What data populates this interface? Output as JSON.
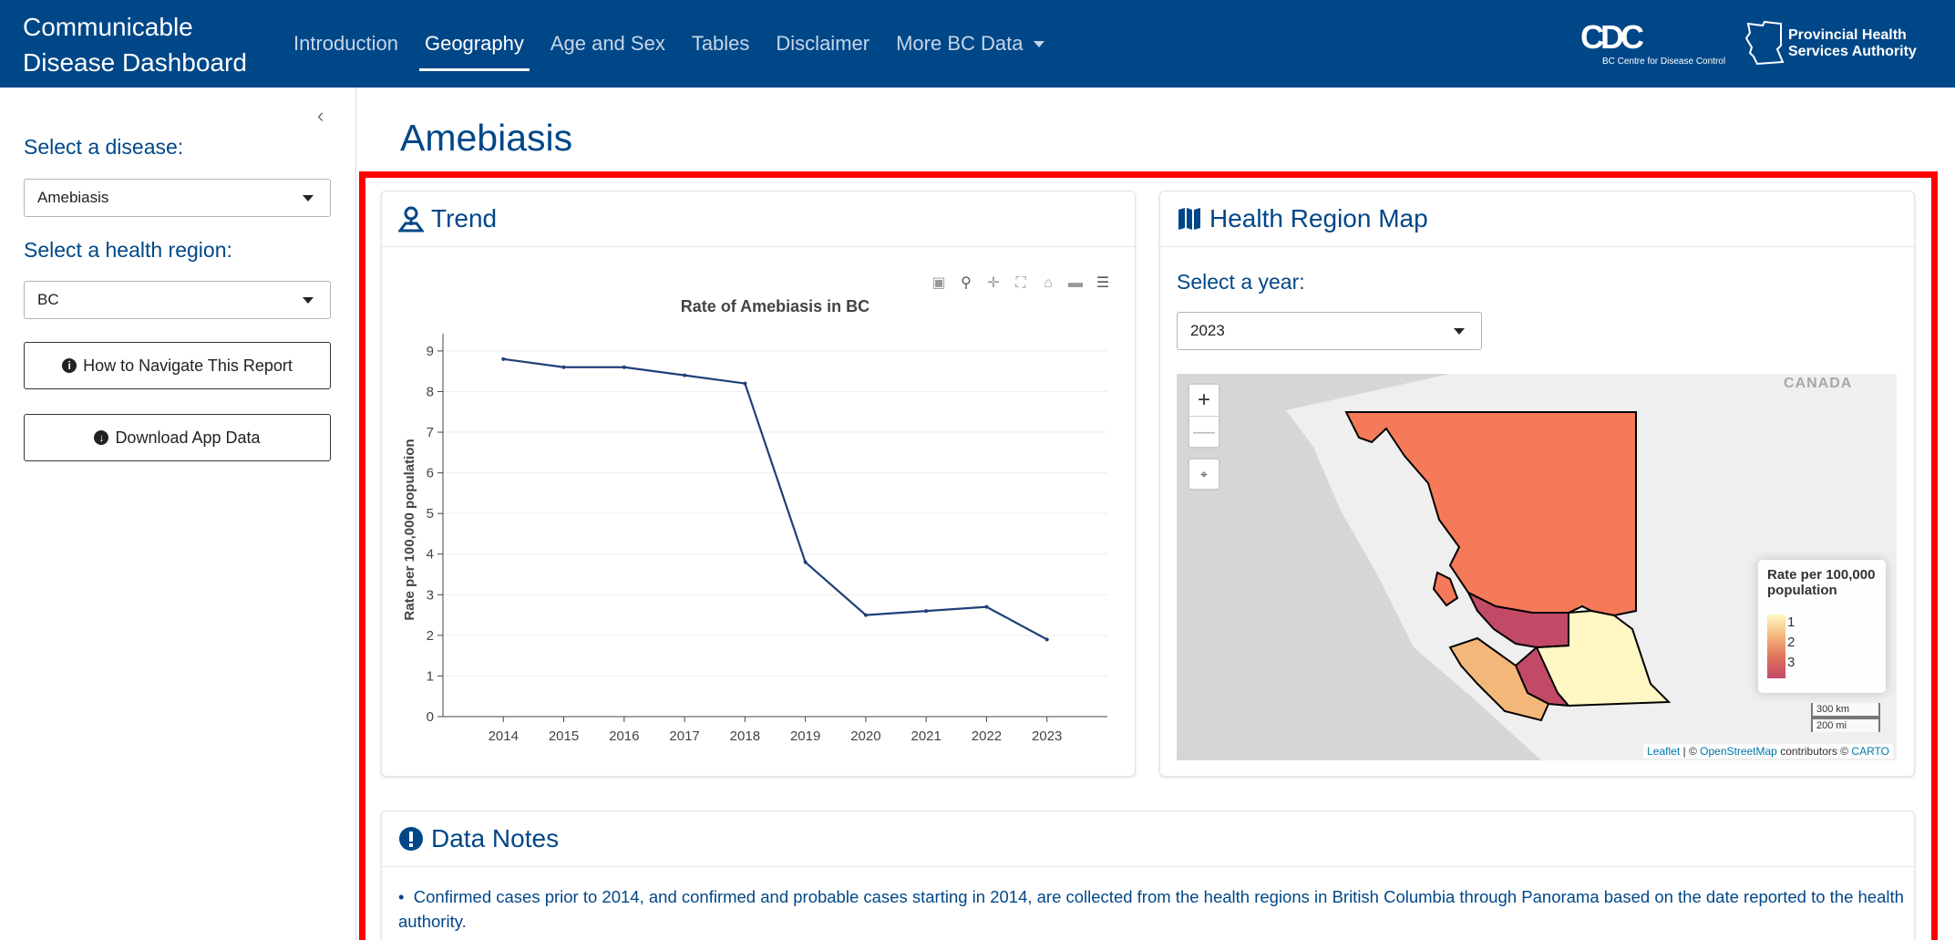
{
  "navbar": {
    "brand_line1": "Communicable",
    "brand_line2": "Disease Dashboard",
    "links": [
      {
        "label": "Introduction",
        "active": false
      },
      {
        "label": "Geography",
        "active": true
      },
      {
        "label": "Age and Sex",
        "active": false
      },
      {
        "label": "Tables",
        "active": false
      },
      {
        "label": "Disclaimer",
        "active": false
      }
    ],
    "more_label": "More BC Data",
    "bccdc_logo_text": "BC Centre for Disease Control",
    "phsa_line1": "Provincial Health",
    "phsa_line2": "Services Authority"
  },
  "sidebar": {
    "disease_label": "Select a disease:",
    "disease_value": "Amebiasis",
    "region_label": "Select a health region:",
    "region_value": "BC",
    "navigate_button": "How to Navigate This Report",
    "download_button": "Download App Data"
  },
  "main": {
    "title": "Amebiasis",
    "trend_title": "Trend",
    "map_title": "Health Region Map",
    "year_label": "Select a year:",
    "year_value": "2023",
    "notes_title": "Data Notes",
    "note_text": "Confirmed cases prior to 2014, and confirmed and probable cases starting in 2014, are collected from the health regions in British Columbia through Panorama based on the date reported to the health authority."
  },
  "map": {
    "country_label": "CANADA",
    "legend_title_line1": "Rate per 100,000",
    "legend_title_line2": "population",
    "legend_ticks": [
      "1",
      "2",
      "3"
    ],
    "scale_km": "300 km",
    "scale_mi": "200 mi",
    "attribution_leaflet": "Leaflet",
    "attribution_sep": "| ©",
    "attribution_osm": "OpenStreetMap",
    "attribution_contrib": "contributors ©",
    "attribution_carto": "CARTO",
    "colors": {
      "high": "#c24a67",
      "mid_high": "#f47a5a",
      "mid": "#f4b77a",
      "low": "#fff8c4"
    }
  },
  "chart_data": {
    "type": "line",
    "title": "Rate of Amebiasis in BC",
    "xlabel": "",
    "ylabel": "Rate per 100,000 population",
    "x": [
      2014,
      2015,
      2016,
      2017,
      2018,
      2019,
      2020,
      2021,
      2022,
      2023
    ],
    "series": [
      {
        "values": [
          8.8,
          8.6,
          8.6,
          8.4,
          8.2,
          3.8,
          2.5,
          2.6,
          2.7,
          1.9
        ]
      }
    ],
    "xlim": [
      2013,
      2024
    ],
    "ylim": [
      0,
      9.2
    ],
    "yticks": [
      0,
      1,
      2,
      3,
      4,
      5,
      6,
      7,
      8,
      9
    ],
    "grid": true,
    "line_color": "#1f3f77"
  }
}
